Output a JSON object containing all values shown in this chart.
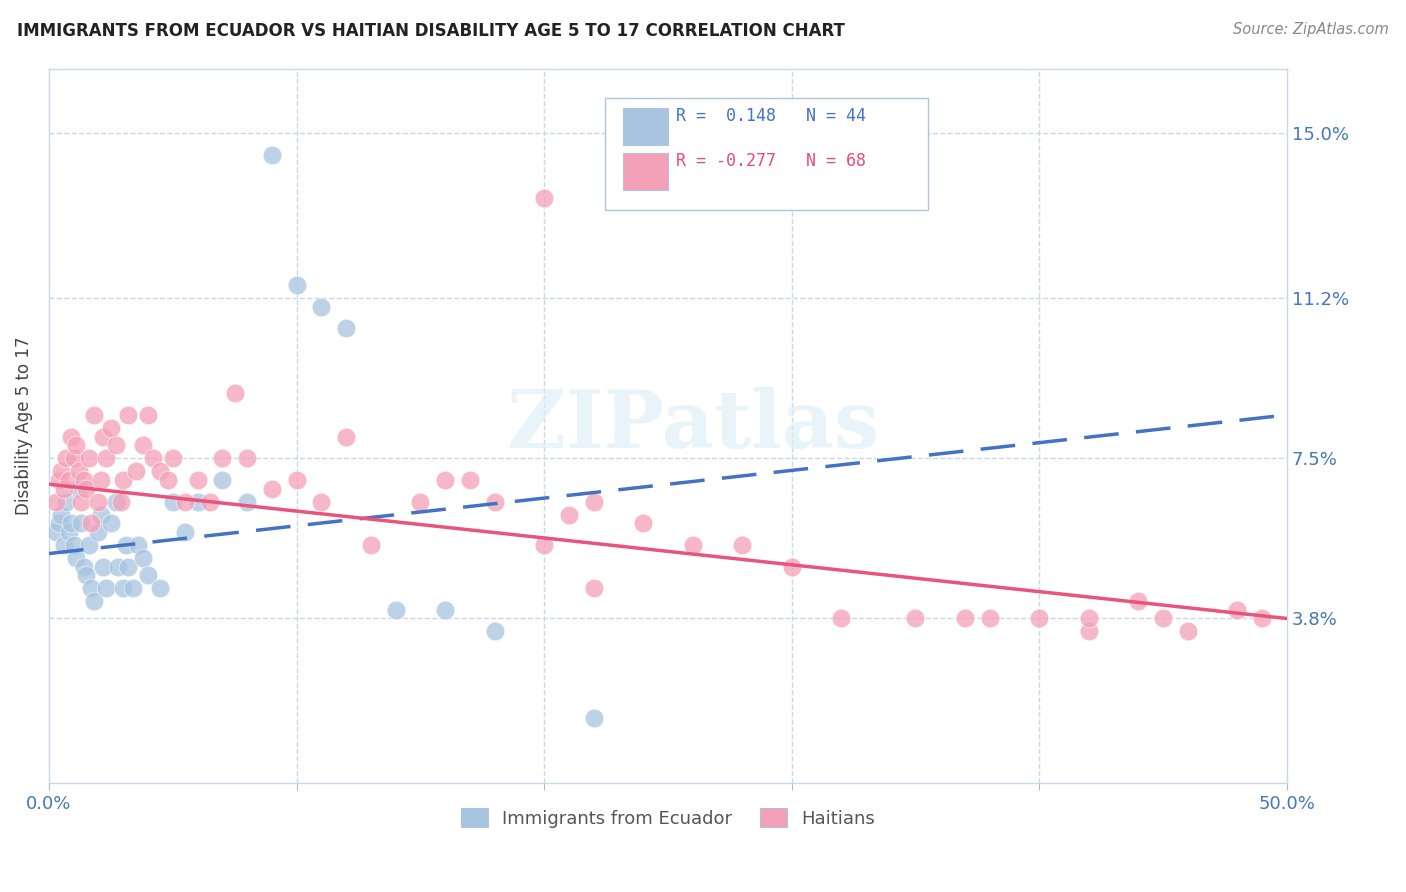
{
  "title": "IMMIGRANTS FROM ECUADOR VS HAITIAN DISABILITY AGE 5 TO 17 CORRELATION CHART",
  "source": "Source: ZipAtlas.com",
  "ylabel": "Disability Age 5 to 17",
  "ytick_labels": [
    "3.8%",
    "7.5%",
    "11.2%",
    "15.0%"
  ],
  "ytick_values": [
    3.8,
    7.5,
    11.2,
    15.0
  ],
  "xtick_positions": [
    0,
    10,
    20,
    30,
    40,
    50
  ],
  "xlim": [
    0.0,
    50.0
  ],
  "ylim": [
    0.0,
    16.5
  ],
  "color_ecuador": "#a8c4e0",
  "color_haiti": "#f4a0b8",
  "color_line_ecuador": "#4472c4",
  "color_line_haiti": "#e8547a",
  "ecuador_x": [
    0.3,
    0.4,
    0.5,
    0.6,
    0.7,
    0.8,
    0.9,
    1.0,
    1.1,
    1.2,
    1.3,
    1.4,
    1.5,
    1.6,
    1.7,
    1.8,
    2.0,
    2.1,
    2.2,
    2.3,
    2.5,
    2.7,
    2.8,
    3.0,
    3.1,
    3.2,
    3.4,
    3.6,
    3.8,
    4.0,
    4.5,
    5.0,
    5.5,
    6.0,
    7.0,
    8.0,
    9.0,
    10.0,
    11.0,
    12.0,
    14.0,
    16.0,
    18.0,
    22.0
  ],
  "ecuador_y": [
    5.8,
    6.0,
    6.2,
    5.5,
    6.5,
    5.8,
    6.0,
    5.5,
    5.2,
    6.8,
    6.0,
    5.0,
    4.8,
    5.5,
    4.5,
    4.2,
    5.8,
    6.2,
    5.0,
    4.5,
    6.0,
    6.5,
    5.0,
    4.5,
    5.5,
    5.0,
    4.5,
    5.5,
    5.2,
    4.8,
    4.5,
    6.5,
    5.8,
    6.5,
    7.0,
    6.5,
    14.5,
    11.5,
    11.0,
    10.5,
    4.0,
    4.0,
    3.5,
    1.5
  ],
  "haiti_x": [
    0.3,
    0.4,
    0.5,
    0.6,
    0.7,
    0.8,
    0.9,
    1.0,
    1.1,
    1.2,
    1.3,
    1.4,
    1.5,
    1.6,
    1.7,
    1.8,
    2.0,
    2.1,
    2.2,
    2.3,
    2.5,
    2.7,
    2.9,
    3.0,
    3.2,
    3.5,
    3.8,
    4.0,
    4.2,
    4.5,
    4.8,
    5.0,
    5.5,
    6.0,
    6.5,
    7.0,
    7.5,
    8.0,
    9.0,
    10.0,
    11.0,
    12.0,
    13.0,
    15.0,
    16.0,
    17.0,
    18.0,
    20.0,
    21.0,
    22.0,
    24.0,
    26.0,
    28.0,
    30.0,
    32.0,
    35.0,
    37.0,
    40.0,
    42.0,
    44.0,
    45.0,
    46.0,
    48.0,
    49.0,
    20.0,
    22.0,
    38.0,
    42.0
  ],
  "haiti_y": [
    6.5,
    7.0,
    7.2,
    6.8,
    7.5,
    7.0,
    8.0,
    7.5,
    7.8,
    7.2,
    6.5,
    7.0,
    6.8,
    7.5,
    6.0,
    8.5,
    6.5,
    7.0,
    8.0,
    7.5,
    8.2,
    7.8,
    6.5,
    7.0,
    8.5,
    7.2,
    7.8,
    8.5,
    7.5,
    7.2,
    7.0,
    7.5,
    6.5,
    7.0,
    6.5,
    7.5,
    9.0,
    7.5,
    6.8,
    7.0,
    6.5,
    8.0,
    5.5,
    6.5,
    7.0,
    7.0,
    6.5,
    5.5,
    6.2,
    4.5,
    6.0,
    5.5,
    5.5,
    5.0,
    3.8,
    3.8,
    3.8,
    3.8,
    3.5,
    4.2,
    3.8,
    3.5,
    4.0,
    3.8,
    13.5,
    6.5,
    3.8,
    3.8
  ],
  "line_ec_x0": 0,
  "line_ec_x1": 50,
  "line_ec_y0": 5.3,
  "line_ec_y1": 8.5,
  "line_ht_x0": 0,
  "line_ht_x1": 50,
  "line_ht_y0": 6.9,
  "line_ht_y1": 3.8
}
